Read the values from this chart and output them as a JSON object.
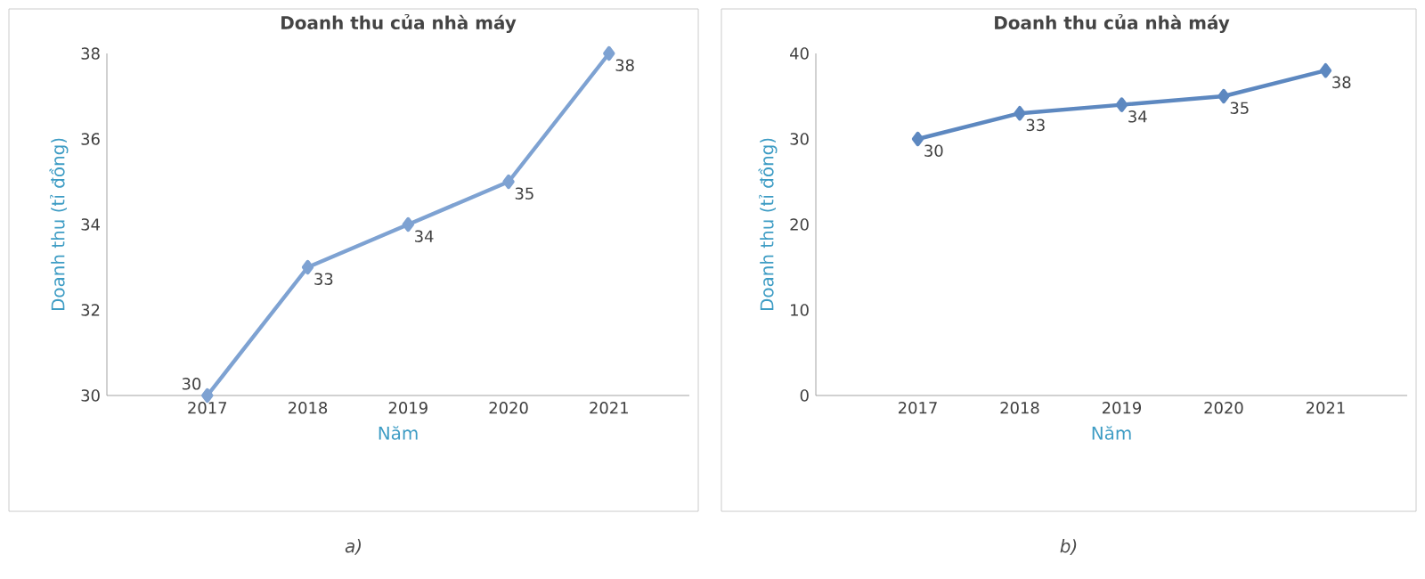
{
  "chart_data": [
    {
      "type": "line",
      "title": "Doanh thu của nhà máy",
      "xlabel": "Năm",
      "ylabel": "Doanh thu (tỉ đồng)",
      "categories": [
        "2017",
        "2018",
        "2019",
        "2020",
        "2021"
      ],
      "series": [
        {
          "color": "#7ea2d2",
          "values": [
            30,
            33,
            34,
            35,
            38
          ]
        }
      ],
      "ylim": [
        30,
        38
      ],
      "yticks": [
        30,
        32,
        34,
        36,
        38
      ],
      "marker": "diamond",
      "data_labels": true,
      "annotations": [
        "a)"
      ]
    },
    {
      "type": "line",
      "title": "Doanh thu của nhà máy",
      "xlabel": "Năm",
      "ylabel": "Doanh thu (tỉ đồng)",
      "categories": [
        "2017",
        "2018",
        "2019",
        "2020",
        "2021"
      ],
      "series": [
        {
          "color": "#5d88c0",
          "values": [
            30,
            33,
            34,
            35,
            38
          ]
        }
      ],
      "ylim": [
        0,
        40
      ],
      "yticks": [
        0,
        10,
        20,
        30,
        40
      ],
      "marker": "diamond",
      "data_labels": true,
      "annotations": [
        "b)"
      ]
    }
  ]
}
